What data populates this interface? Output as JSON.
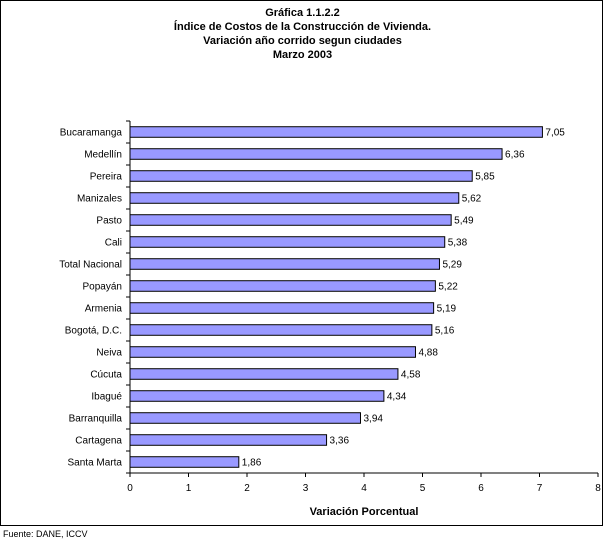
{
  "title_lines": [
    "Gráfica 1.1.2.2",
    "Índice de Costos de  la Construcción de Vivienda.",
    "Variación año corrido segun ciudades",
    "Marzo 2003"
  ],
  "source": "Fuente: DANE, ICCV",
  "chart_data": {
    "type": "bar",
    "orientation": "horizontal",
    "title": "Gráfica 1.1.2.2 Índice de Costos de  la Construcción de Vivienda. Variación año corrido segun ciudades Marzo 2003",
    "xlabel": "Variación Porcentual",
    "ylabel": "",
    "xlim": [
      0,
      8
    ],
    "xticks": [
      "0",
      "1",
      "2",
      "3",
      "4",
      "5",
      "6",
      "7",
      "8"
    ],
    "grid": false,
    "bar_color": "#9999ff",
    "categories": [
      "Bucaramanga",
      "Medellín",
      "Pereira",
      "Manizales",
      "Pasto",
      "Cali",
      "Total Nacional",
      "Popayán",
      "Armenia",
      "Bogotá, D.C.",
      "Neiva",
      "Cúcuta",
      "Ibagué",
      "Barranquilla",
      "Cartagena",
      "Santa Marta"
    ],
    "values": [
      7.05,
      6.36,
      5.85,
      5.62,
      5.49,
      5.38,
      5.29,
      5.22,
      5.19,
      5.16,
      4.88,
      4.58,
      4.34,
      3.94,
      3.36,
      1.86
    ],
    "value_labels": [
      "7,05",
      "6,36",
      "5,85",
      "5,62",
      "5,49",
      "5,38",
      "5,29",
      "5,22",
      "5,19",
      "5,16",
      "4,88",
      "4,58",
      "4,34",
      "3,94",
      "3,36",
      "1,86"
    ]
  }
}
